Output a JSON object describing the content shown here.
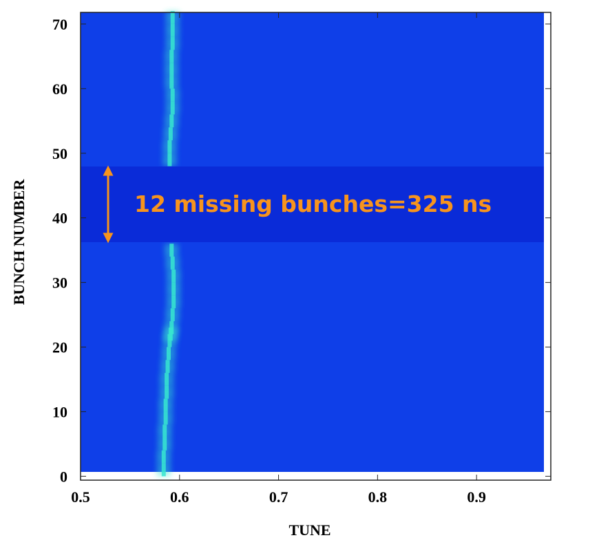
{
  "chart_data": {
    "type": "heatmap",
    "xlabel": "TUNE",
    "ylabel": "BUNCH NUMBER",
    "annotation": "12 missing bunches=325 ns",
    "xlim": [
      0.5,
      0.975
    ],
    "ylim": [
      -0.6,
      71.8
    ],
    "xticks": [
      0.5,
      0.6,
      0.7,
      0.8,
      0.9
    ],
    "yticks": [
      0,
      10,
      20,
      30,
      40,
      50,
      60,
      70
    ],
    "color": "#37e6d0",
    "ridge": {
      "bunch": [
        1,
        3,
        5,
        7,
        9,
        11,
        13,
        15,
        17,
        19,
        21,
        22,
        23,
        25,
        27,
        29,
        31,
        33,
        35,
        49,
        51,
        53,
        55,
        57,
        59,
        61,
        63,
        65,
        67,
        69,
        71
      ],
      "tune": [
        0.584,
        0.584,
        0.585,
        0.585,
        0.586,
        0.586,
        0.587,
        0.587,
        0.588,
        0.589,
        0.59,
        0.591,
        0.592,
        0.593,
        0.594,
        0.594,
        0.594,
        0.593,
        0.592,
        0.59,
        0.59,
        0.591,
        0.592,
        0.593,
        0.593,
        0.592,
        0.592,
        0.592,
        0.593,
        0.593,
        0.593
      ]
    }
  }
}
